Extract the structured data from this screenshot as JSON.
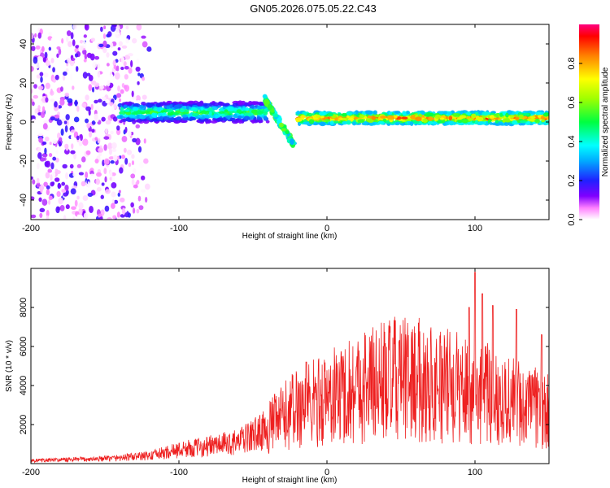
{
  "title": "GN05.2026.075.05.22.C43",
  "chart_data": [
    {
      "type": "heatmap",
      "xlabel": "Height of straight line (km)",
      "ylabel": "Frequency (Hz)",
      "xlim": [
        -200,
        150
      ],
      "ylim": [
        -50,
        50
      ],
      "x_ticks": [
        -200,
        -100,
        0,
        100
      ],
      "y_ticks": [
        -40,
        -20,
        0,
        20,
        40
      ],
      "colorbar": {
        "label": "Normalized spectral amplitude",
        "range": [
          0.0,
          1.0
        ],
        "ticks": [
          0.0,
          0.2,
          0.4,
          0.6,
          0.8
        ],
        "tick_labels": [
          "0.0",
          "0.2",
          "0.4",
          "0.6",
          "0.8"
        ]
      },
      "features": [
        {
          "name": "diffuse noise",
          "x_range": [
            -200,
            -120
          ],
          "freq_range": [
            -50,
            50
          ],
          "amplitude_range": [
            0.0,
            0.2
          ]
        },
        {
          "name": "emerging band",
          "x_range": [
            -140,
            -40
          ],
          "freq_center": 5,
          "freq_width": 10,
          "amplitude_range": [
            0.2,
            0.6
          ]
        },
        {
          "name": "crossing streak",
          "x_range": [
            -42,
            -22
          ],
          "freq_start": 12,
          "freq_end": -12,
          "amplitude_range": [
            0.3,
            0.6
          ]
        },
        {
          "name": "steady band",
          "x_range": [
            -20,
            150
          ],
          "freq_center": 2,
          "freq_width": 6,
          "amplitude_range": [
            0.5,
            0.95
          ]
        }
      ]
    },
    {
      "type": "line",
      "xlabel": "Height of straight line (km)",
      "ylabel": "SNR (10 * v/v)",
      "xlim": [
        -200,
        150
      ],
      "ylim": [
        0,
        10000
      ],
      "x_ticks": [
        -200,
        -100,
        0,
        100
      ],
      "y_ticks": [
        2000,
        4000,
        6000,
        8000
      ],
      "color": "#ee2020",
      "trend": [
        {
          "x": -200,
          "y": 150
        },
        {
          "x": -150,
          "y": 250
        },
        {
          "x": -120,
          "y": 400
        },
        {
          "x": -100,
          "y": 700
        },
        {
          "x": -80,
          "y": 900
        },
        {
          "x": -60,
          "y": 1100
        },
        {
          "x": -40,
          "y": 1800
        },
        {
          "x": -20,
          "y": 2900
        },
        {
          "x": 0,
          "y": 3300
        },
        {
          "x": 20,
          "y": 3900
        },
        {
          "x": 40,
          "y": 4300
        },
        {
          "x": 60,
          "y": 4300
        },
        {
          "x": 80,
          "y": 4000
        },
        {
          "x": 100,
          "y": 3700
        },
        {
          "x": 120,
          "y": 3300
        },
        {
          "x": 150,
          "y": 2600
        }
      ],
      "peaks": [
        {
          "x": -14,
          "y": 5200
        },
        {
          "x": 100,
          "y": 9800
        },
        {
          "x": 105,
          "y": 8700
        },
        {
          "x": 96,
          "y": 8000
        },
        {
          "x": 112,
          "y": 8100
        },
        {
          "x": 128,
          "y": 7900
        },
        {
          "x": 145,
          "y": 6600
        }
      ]
    }
  ]
}
